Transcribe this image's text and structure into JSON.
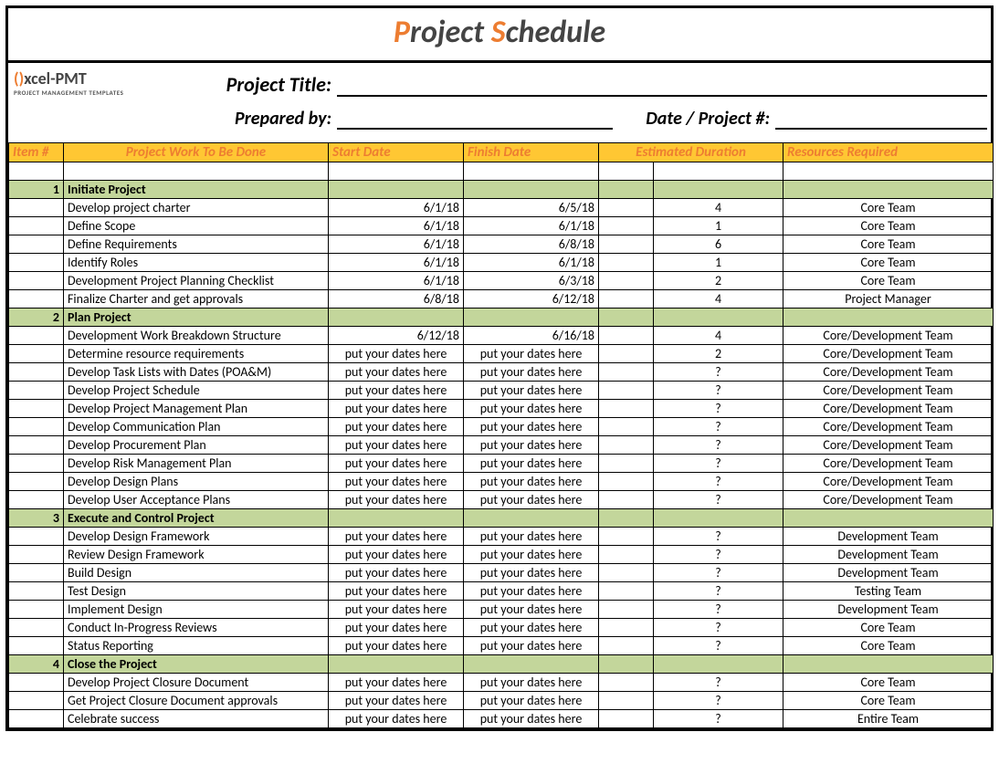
{
  "title": {
    "prefix1": "P",
    "part1": "roject ",
    "prefix2": "S",
    "part2": "chedule"
  },
  "logo": {
    "b1": "()",
    "b2": "xcel-PMT",
    "sub": "PROJECT MANAGEMENT TEMPLATES"
  },
  "labels": {
    "project_title": "Project Title:",
    "prepared_by": "Prepared by:",
    "date_proj": "Date / Project #:"
  },
  "columns": {
    "item": "Item #",
    "work": "Project Work To Be Done",
    "start": "Start Date",
    "finish": "Finish Date",
    "dur": "Estimated Duration",
    "res": "Resources Required"
  },
  "colors": {
    "header_bg": "#ffc733",
    "header_fg": "#ed7d31",
    "section_bg": "#c3d69b",
    "border": "#000000",
    "accent": "#ed7d31"
  },
  "rows": [
    {
      "type": "spacer"
    },
    {
      "type": "section",
      "num": "1",
      "work": "Initiate Project"
    },
    {
      "type": "task",
      "work": "Develop project charter",
      "start": "6/1/18",
      "finish": "6/5/18",
      "dur": "4",
      "res": "Core Team"
    },
    {
      "type": "task",
      "work": "Define Scope",
      "start": "6/1/18",
      "finish": "6/1/18",
      "dur": "1",
      "res": "Core Team"
    },
    {
      "type": "task",
      "work": "Define Requirements",
      "start": "6/1/18",
      "finish": "6/8/18",
      "dur": "6",
      "res": "Core Team"
    },
    {
      "type": "task",
      "work": "Identify Roles",
      "start": "6/1/18",
      "finish": "6/1/18",
      "dur": "1",
      "res": "Core Team"
    },
    {
      "type": "task",
      "work": "Development Project Planning Checklist",
      "start": "6/1/18",
      "finish": "6/3/18",
      "dur": "2",
      "res": "Core Team"
    },
    {
      "type": "task",
      "work": "Finalize Charter and get approvals",
      "start": "6/8/18",
      "finish": "6/12/18",
      "dur": "4",
      "res": "Project Manager"
    },
    {
      "type": "section",
      "num": "2",
      "work": "Plan Project"
    },
    {
      "type": "task",
      "work": "Development Work Breakdown Structure",
      "start": "6/12/18",
      "finish": "6/16/18",
      "dur": "4",
      "res": "Core/Development Team"
    },
    {
      "type": "task",
      "work": "Determine resource requirements",
      "start": "put your dates here",
      "finish": "put your dates here",
      "dur": "2",
      "res": "Core/Development Team"
    },
    {
      "type": "task",
      "work": "Develop Task Lists with Dates (POA&M)",
      "start": "put your dates here",
      "finish": "put your dates here",
      "dur": "?",
      "res": "Core/Development Team"
    },
    {
      "type": "task",
      "work": "Develop Project Schedule",
      "start": "put your dates here",
      "finish": "put your dates here",
      "dur": "?",
      "res": "Core/Development Team"
    },
    {
      "type": "task",
      "work": "Develop Project Management Plan",
      "start": "put your dates here",
      "finish": "put your dates here",
      "dur": "?",
      "res": "Core/Development Team"
    },
    {
      "type": "task",
      "work": "Develop Communication Plan",
      "start": "put your dates here",
      "finish": "put your dates here",
      "dur": "?",
      "res": "Core/Development Team"
    },
    {
      "type": "task",
      "work": "Develop Procurement Plan",
      "start": "put your dates here",
      "finish": "put your dates here",
      "dur": "?",
      "res": "Core/Development Team"
    },
    {
      "type": "task",
      "work": "Develop Risk Management Plan",
      "start": "put your dates here",
      "finish": "put your dates here",
      "dur": "?",
      "res": "Core/Development Team"
    },
    {
      "type": "task",
      "work": "Develop Design Plans",
      "start": "put your dates here",
      "finish": "put your dates here",
      "dur": "?",
      "res": "Core/Development Team"
    },
    {
      "type": "task",
      "work": "Develop User Acceptance Plans",
      "start": "put your dates here",
      "finish": "put your dates here",
      "dur": "?",
      "res": "Core/Development Team"
    },
    {
      "type": "section",
      "num": "3",
      "work": "Execute and Control Project"
    },
    {
      "type": "task",
      "work": "Develop Design Framework",
      "start": "put your dates here",
      "finish": "put your dates here",
      "dur": "?",
      "res": "Development Team"
    },
    {
      "type": "task",
      "work": "Review Design Framework",
      "start": "put your dates here",
      "finish": "put your dates here",
      "dur": "?",
      "res": "Development Team"
    },
    {
      "type": "task",
      "work": "Build Design",
      "start": "put your dates here",
      "finish": "put your dates here",
      "dur": "?",
      "res": "Development Team"
    },
    {
      "type": "task",
      "work": "Test Design",
      "start": "put your dates here",
      "finish": "put your dates here",
      "dur": "?",
      "res": "Testing Team"
    },
    {
      "type": "task",
      "work": "Implement Design",
      "start": "put your dates here",
      "finish": "put your dates here",
      "dur": "?",
      "res": "Development Team"
    },
    {
      "type": "task",
      "work": "Conduct In-Progress Reviews",
      "start": "put your dates here",
      "finish": "put your dates here",
      "dur": "?",
      "res": "Core Team"
    },
    {
      "type": "task",
      "work": "Status Reporting",
      "start": "put your dates here",
      "finish": "put your dates here",
      "dur": "?",
      "res": "Core Team"
    },
    {
      "type": "section",
      "num": "4",
      "work": "Close the Project"
    },
    {
      "type": "task",
      "work": "Develop Project Closure Document",
      "start": "put your dates here",
      "finish": "put your dates here",
      "dur": "?",
      "res": "Core Team"
    },
    {
      "type": "task",
      "work": "Get Project Closure Document approvals",
      "start": "put your dates here",
      "finish": "put your dates here",
      "dur": "?",
      "res": "Core Team"
    },
    {
      "type": "task",
      "work": "Celebrate success",
      "start": "put your dates here",
      "finish": "put your dates here",
      "dur": "?",
      "res": "Entire Team"
    }
  ]
}
